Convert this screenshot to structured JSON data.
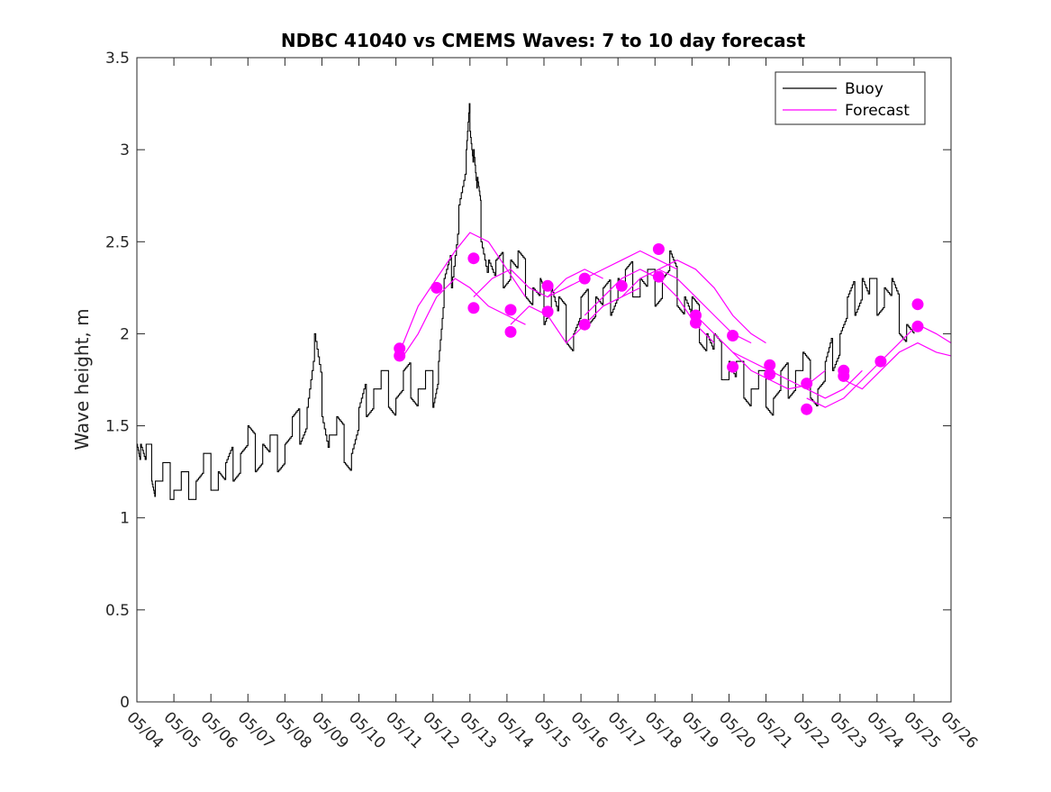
{
  "chart_data": {
    "type": "line",
    "title": "NDBC 41040 vs CMEMS Waves: 7 to 10 day forecast",
    "xlabel": "",
    "ylabel": "Wave height, m",
    "x_ticks": [
      "05/04",
      "05/05",
      "05/06",
      "05/07",
      "05/08",
      "05/09",
      "05/10",
      "05/11",
      "05/12",
      "05/13",
      "05/14",
      "05/15",
      "05/16",
      "05/17",
      "05/18",
      "05/19",
      "05/20",
      "05/21",
      "05/22",
      "05/23",
      "05/24",
      "05/25",
      "05/26"
    ],
    "y_ticks": [
      "0",
      "0.5",
      "1",
      "1.5",
      "2",
      "2.5",
      "3",
      "3.5"
    ],
    "ylim": [
      0,
      3.5
    ],
    "xlim": [
      "05/04",
      "05/26"
    ],
    "grid": false,
    "legend_position": "top-right",
    "colors": {
      "buoy": "#000000",
      "forecast": "#ff00ff"
    },
    "legend": [
      {
        "name": "Buoy",
        "color": "#000000"
      },
      {
        "name": "Forecast",
        "color": "#ff00ff"
      }
    ],
    "series": [
      {
        "name": "Buoy",
        "x_unit": "days since 05/04",
        "points": [
          [
            0.0,
            1.5
          ],
          [
            0.1,
            1.4
          ],
          [
            0.25,
            1.3
          ],
          [
            0.4,
            1.3
          ],
          [
            0.5,
            1.2
          ],
          [
            0.7,
            1.2
          ],
          [
            0.9,
            1.2
          ],
          [
            1.0,
            1.15
          ],
          [
            1.2,
            1.15
          ],
          [
            1.4,
            1.15
          ],
          [
            1.6,
            1.2
          ],
          [
            1.8,
            1.25
          ],
          [
            2.0,
            1.25
          ],
          [
            2.2,
            1.25
          ],
          [
            2.4,
            1.2
          ],
          [
            2.6,
            1.3
          ],
          [
            2.8,
            1.35
          ],
          [
            3.0,
            1.4
          ],
          [
            3.2,
            1.35
          ],
          [
            3.4,
            1.4
          ],
          [
            3.6,
            1.35
          ],
          [
            3.8,
            1.35
          ],
          [
            4.0,
            1.4
          ],
          [
            4.2,
            1.45
          ],
          [
            4.4,
            1.5
          ],
          [
            4.6,
            1.6
          ],
          [
            4.8,
            1.9
          ],
          [
            5.0,
            1.65
          ],
          [
            5.2,
            1.45
          ],
          [
            5.4,
            1.45
          ],
          [
            5.6,
            1.4
          ],
          [
            5.8,
            1.35
          ],
          [
            6.0,
            1.5
          ],
          [
            6.2,
            1.65
          ],
          [
            6.4,
            1.7
          ],
          [
            6.6,
            1.7
          ],
          [
            6.8,
            1.7
          ],
          [
            7.0,
            1.65
          ],
          [
            7.2,
            1.7
          ],
          [
            7.4,
            1.75
          ],
          [
            7.6,
            1.7
          ],
          [
            7.8,
            1.7
          ],
          [
            8.0,
            1.7
          ],
          [
            8.15,
            1.85
          ],
          [
            8.3,
            2.2
          ],
          [
            8.5,
            2.35
          ],
          [
            8.7,
            2.7
          ],
          [
            8.9,
            2.9
          ],
          [
            9.0,
            3.2
          ],
          [
            9.1,
            3.0
          ],
          [
            9.2,
            2.75
          ],
          [
            9.3,
            2.6
          ],
          [
            9.5,
            2.4
          ],
          [
            9.7,
            2.3
          ],
          [
            9.9,
            2.35
          ],
          [
            10.1,
            2.4
          ],
          [
            10.3,
            2.35
          ],
          [
            10.5,
            2.3
          ],
          [
            10.7,
            2.25
          ],
          [
            10.9,
            2.2
          ],
          [
            11.0,
            2.15
          ],
          [
            11.2,
            2.25
          ],
          [
            11.4,
            2.1
          ],
          [
            11.6,
            2.05
          ],
          [
            11.8,
            2.0
          ],
          [
            12.0,
            2.1
          ],
          [
            12.2,
            2.15
          ],
          [
            12.4,
            2.2
          ],
          [
            12.6,
            2.15
          ],
          [
            12.8,
            2.2
          ],
          [
            13.0,
            2.3
          ],
          [
            13.2,
            2.25
          ],
          [
            13.4,
            2.3
          ],
          [
            13.6,
            2.3
          ],
          [
            13.8,
            2.25
          ],
          [
            14.0,
            2.25
          ],
          [
            14.2,
            2.3
          ],
          [
            14.4,
            2.35
          ],
          [
            14.6,
            2.25
          ],
          [
            14.8,
            2.2
          ],
          [
            15.0,
            2.1
          ],
          [
            15.2,
            2.05
          ],
          [
            15.4,
            2.0
          ],
          [
            15.6,
            1.9
          ],
          [
            15.8,
            1.85
          ],
          [
            16.0,
            1.85
          ],
          [
            16.2,
            1.75
          ],
          [
            16.4,
            1.75
          ],
          [
            16.6,
            1.7
          ],
          [
            16.8,
            1.7
          ],
          [
            17.0,
            1.7
          ],
          [
            17.2,
            1.65
          ],
          [
            17.4,
            1.7
          ],
          [
            17.6,
            1.75
          ],
          [
            17.8,
            1.8
          ],
          [
            18.0,
            1.8
          ],
          [
            18.2,
            1.75
          ],
          [
            18.4,
            1.7
          ],
          [
            18.6,
            1.75
          ],
          [
            18.8,
            1.9
          ],
          [
            19.0,
            2.0
          ],
          [
            19.2,
            2.1
          ],
          [
            19.4,
            2.2
          ],
          [
            19.6,
            2.3
          ],
          [
            19.8,
            2.2
          ],
          [
            20.0,
            2.2
          ],
          [
            20.2,
            2.25
          ],
          [
            20.4,
            2.2
          ],
          [
            20.6,
            2.1
          ],
          [
            20.8,
            2.05
          ],
          [
            21.0,
            2.0
          ]
        ]
      },
      {
        "name": "Forecast",
        "x_unit": "days since 05/04",
        "markers": [
          [
            7.1,
            1.92
          ],
          [
            7.1,
            1.88
          ],
          [
            8.1,
            2.25
          ],
          [
            9.1,
            2.41
          ],
          [
            9.1,
            2.14
          ],
          [
            10.1,
            2.13
          ],
          [
            10.1,
            2.01
          ],
          [
            11.1,
            2.26
          ],
          [
            11.1,
            2.12
          ],
          [
            12.1,
            2.3
          ],
          [
            12.1,
            2.05
          ],
          [
            13.1,
            2.26
          ],
          [
            14.1,
            2.46
          ],
          [
            14.1,
            2.31
          ],
          [
            15.1,
            2.1
          ],
          [
            15.1,
            2.06
          ],
          [
            16.1,
            1.99
          ],
          [
            16.1,
            1.82
          ],
          [
            17.1,
            1.83
          ],
          [
            17.1,
            1.78
          ],
          [
            18.1,
            1.73
          ],
          [
            18.1,
            1.59
          ],
          [
            19.1,
            1.8
          ],
          [
            19.1,
            1.77
          ],
          [
            20.1,
            1.85
          ],
          [
            21.1,
            2.16
          ],
          [
            21.1,
            2.04
          ]
        ],
        "lines": [
          [
            [
              7.1,
              1.9
            ],
            [
              7.6,
              2.15
            ],
            [
              8.1,
              2.3
            ],
            [
              8.6,
              2.45
            ],
            [
              9.0,
              2.55
            ],
            [
              9.5,
              2.5
            ],
            [
              10.0,
              2.35
            ],
            [
              10.5,
              2.2
            ]
          ],
          [
            [
              7.1,
              1.85
            ],
            [
              7.6,
              2.0
            ],
            [
              8.1,
              2.2
            ],
            [
              8.6,
              2.3
            ],
            [
              9.0,
              2.25
            ],
            [
              9.5,
              2.15
            ],
            [
              10.0,
              2.1
            ],
            [
              10.5,
              2.05
            ]
          ],
          [
            [
              9.1,
              2.2
            ],
            [
              9.6,
              2.3
            ],
            [
              10.1,
              2.35
            ],
            [
              10.6,
              2.25
            ],
            [
              11.1,
              2.2
            ],
            [
              11.6,
              2.3
            ],
            [
              12.1,
              2.35
            ],
            [
              12.6,
              2.3
            ]
          ],
          [
            [
              10.1,
              2.05
            ],
            [
              10.6,
              2.15
            ],
            [
              11.1,
              2.1
            ],
            [
              11.6,
              1.95
            ],
            [
              12.1,
              2.05
            ],
            [
              12.6,
              2.15
            ],
            [
              13.1,
              2.2
            ],
            [
              13.6,
              2.25
            ]
          ],
          [
            [
              11.1,
              2.2
            ],
            [
              11.6,
              2.25
            ],
            [
              12.1,
              2.3
            ],
            [
              12.6,
              2.35
            ],
            [
              13.1,
              2.4
            ],
            [
              13.6,
              2.45
            ],
            [
              14.1,
              2.4
            ],
            [
              14.6,
              2.35
            ]
          ],
          [
            [
              12.1,
              2.1
            ],
            [
              12.6,
              2.2
            ],
            [
              13.1,
              2.3
            ],
            [
              13.6,
              2.35
            ],
            [
              14.1,
              2.3
            ],
            [
              14.6,
              2.2
            ],
            [
              15.1,
              2.05
            ],
            [
              15.6,
              1.95
            ]
          ],
          [
            [
              13.1,
              2.2
            ],
            [
              13.6,
              2.3
            ],
            [
              14.1,
              2.35
            ],
            [
              14.6,
              2.3
            ],
            [
              15.1,
              2.2
            ],
            [
              15.6,
              2.1
            ],
            [
              16.1,
              2.0
            ],
            [
              16.6,
              1.95
            ]
          ],
          [
            [
              14.1,
              2.35
            ],
            [
              14.6,
              2.4
            ],
            [
              15.1,
              2.35
            ],
            [
              15.6,
              2.25
            ],
            [
              16.1,
              2.1
            ],
            [
              16.6,
              2.0
            ],
            [
              17.0,
              1.95
            ]
          ],
          [
            [
              15.1,
              2.1
            ],
            [
              15.6,
              2.0
            ],
            [
              16.1,
              1.9
            ],
            [
              16.6,
              1.8
            ],
            [
              17.1,
              1.75
            ],
            [
              17.6,
              1.7
            ],
            [
              18.1,
              1.72
            ],
            [
              18.6,
              1.8
            ]
          ],
          [
            [
              16.1,
              1.9
            ],
            [
              16.6,
              1.85
            ],
            [
              17.1,
              1.8
            ],
            [
              17.6,
              1.75
            ],
            [
              18.1,
              1.7
            ],
            [
              18.6,
              1.65
            ],
            [
              19.1,
              1.7
            ],
            [
              19.6,
              1.8
            ]
          ],
          [
            [
              18.1,
              1.65
            ],
            [
              18.6,
              1.6
            ],
            [
              19.1,
              1.65
            ],
            [
              19.6,
              1.75
            ],
            [
              20.1,
              1.85
            ],
            [
              20.6,
              1.95
            ],
            [
              21.1,
              2.05
            ],
            [
              21.6,
              2.0
            ],
            [
              22.0,
              1.95
            ]
          ],
          [
            [
              19.1,
              1.75
            ],
            [
              19.6,
              1.7
            ],
            [
              20.1,
              1.8
            ],
            [
              20.6,
              1.9
            ],
            [
              21.1,
              1.95
            ],
            [
              21.6,
              1.9
            ],
            [
              22.0,
              1.88
            ]
          ]
        ]
      }
    ]
  }
}
